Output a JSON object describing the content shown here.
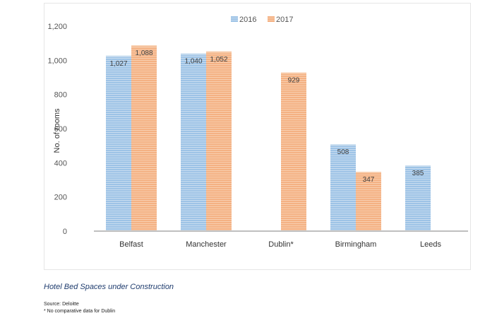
{
  "chart_data": {
    "type": "bar",
    "categories": [
      "Belfast",
      "Manchester",
      "Dublin*",
      "Birmingham",
      "Leeds"
    ],
    "series": [
      {
        "name": "2016",
        "color": "#9dc3e6",
        "values": [
          1027,
          1040,
          null,
          508,
          385
        ]
      },
      {
        "name": "2017",
        "color": "#f4b183",
        "values": [
          1088,
          1052,
          929,
          347,
          null
        ]
      }
    ],
    "ylabel": "No. of rooms",
    "ylim": [
      0,
      1200
    ],
    "yticks": [
      0,
      200,
      400,
      600,
      800,
      1000,
      1200
    ],
    "ytick_labels": [
      "0",
      "200",
      "400",
      "600",
      "800",
      "1,000",
      "1,200"
    ],
    "data_labels": [
      [
        "1,027",
        "1,040",
        null,
        "508",
        "385"
      ],
      [
        "1,088",
        "1,052",
        "929",
        "347",
        null
      ]
    ],
    "legend_position": "top",
    "grid": false
  },
  "caption": "Hotel Bed Spaces under Construction",
  "source": "Source: Deloitte",
  "footnote": "* No comparative data for Dublin"
}
